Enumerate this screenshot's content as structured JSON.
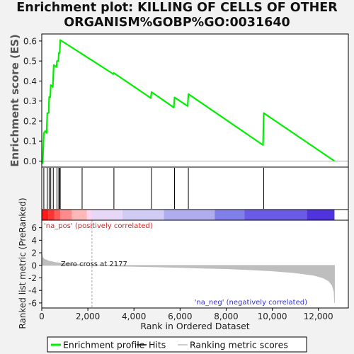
{
  "chart_data": {
    "type": "line",
    "title_lines": [
      "Enrichment plot: KILLING OF CELLS OF OTHER",
      "ORGANISM%GOBP%GO:0031640"
    ],
    "ylabel_top": "Enrichment score (ES)",
    "ylabel_bottom": "Ranked list metric (PreRanked)",
    "xlabel": "Rank in Ordered Dataset",
    "x_ticks": [
      0,
      2000,
      4000,
      6000,
      8000,
      10000,
      12000
    ],
    "x_tick_labels": [
      "0",
      "2,000",
      "4,000",
      "6,000",
      "8,000",
      "10,000",
      "12,000"
    ],
    "x_range": [
      0,
      13300
    ],
    "es_ylim": [
      -0.03,
      0.635
    ],
    "es_ticks": [
      0.0,
      0.1,
      0.2,
      0.3,
      0.4,
      0.5,
      0.6
    ],
    "es_tick_labels": [
      "0.0",
      "0.1",
      "0.2",
      "0.3",
      "0.4",
      "0.5",
      "0.6"
    ],
    "metric_ylim": [
      -6.8,
      7.2
    ],
    "metric_ticks": [
      -6,
      -4,
      -2,
      0,
      2,
      4,
      6
    ],
    "metric_tick_labels": [
      "-6",
      "-4",
      "-2",
      "0",
      "2",
      "4",
      "6"
    ],
    "enrichment_profile": {
      "name": "Enrichment profile",
      "color": "#00ee00",
      "points": [
        [
          0,
          0.0
        ],
        [
          40,
          -0.01
        ],
        [
          90,
          0.14
        ],
        [
          150,
          0.15
        ],
        [
          210,
          0.14
        ],
        [
          240,
          0.24
        ],
        [
          300,
          0.24
        ],
        [
          320,
          0.32
        ],
        [
          370,
          0.32
        ],
        [
          390,
          0.38
        ],
        [
          480,
          0.37
        ],
        [
          500,
          0.43
        ],
        [
          520,
          0.48
        ],
        [
          640,
          0.47
        ],
        [
          660,
          0.5
        ],
        [
          720,
          0.5
        ],
        [
          740,
          0.54
        ],
        [
          780,
          0.54
        ],
        [
          800,
          0.605
        ],
        [
          1750,
          0.535
        ],
        [
          3100,
          0.435
        ],
        [
          3130,
          0.44
        ],
        [
          4730,
          0.315
        ],
        [
          4760,
          0.345
        ],
        [
          5730,
          0.268
        ],
        [
          5760,
          0.318
        ],
        [
          6330,
          0.275
        ],
        [
          6360,
          0.335
        ],
        [
          9600,
          0.08
        ],
        [
          9630,
          0.24
        ],
        [
          12700,
          0.0
        ]
      ]
    },
    "hits": [
      90,
      240,
      320,
      390,
      500,
      660,
      740,
      780,
      800,
      1750,
      3130,
      4760,
      5760,
      6360,
      9630
    ],
    "metric_series": {
      "name": "Ranking metric scores",
      "color": "#bebebe",
      "points": [
        [
          0,
          2.0
        ],
        [
          30,
          1.3
        ],
        [
          100,
          1.0
        ],
        [
          300,
          0.7
        ],
        [
          600,
          0.45
        ],
        [
          1000,
          0.3
        ],
        [
          1500,
          0.15
        ],
        [
          2177,
          0.0
        ],
        [
          3000,
          -0.1
        ],
        [
          4000,
          -0.18
        ],
        [
          5000,
          -0.25
        ],
        [
          6000,
          -0.35
        ],
        [
          7000,
          -0.45
        ],
        [
          8000,
          -0.55
        ],
        [
          9000,
          -0.7
        ],
        [
          10000,
          -0.9
        ],
        [
          11000,
          -1.2
        ],
        [
          11800,
          -1.6
        ],
        [
          12200,
          -2.0
        ],
        [
          12450,
          -2.5
        ],
        [
          12600,
          -3.2
        ],
        [
          12680,
          -4.2
        ],
        [
          12700,
          -6.0
        ]
      ]
    },
    "zero_cross": 2177,
    "zero_cross_label": "Zero cross at 2177",
    "pos_label": "'na_pos' (positively correlated)",
    "neg_label": "'na_neg' (negatively correlated)",
    "heatmap_colors": [
      "#ff1a1a",
      "#ff3333",
      "#ff5c5c",
      "#ff8c8c",
      "#ffb8b8",
      "#ffd4f0",
      "#e8d8f8",
      "#d0ccf5",
      "#b0acf0",
      "#8080ea",
      "#6a5ae6",
      "#5033dd",
      "#2a12cc"
    ],
    "heatmap_breaks": [
      0,
      300,
      550,
      800,
      1300,
      1950,
      2150,
      3500,
      5300,
      7500,
      8800,
      11500,
      12700
    ],
    "legend": [
      {
        "label": "Enrichment profile",
        "color": "#00ee00"
      },
      {
        "label": "Hits",
        "color": "#000000"
      },
      {
        "label": "Ranking metric scores",
        "color": "#bebebe"
      }
    ]
  }
}
